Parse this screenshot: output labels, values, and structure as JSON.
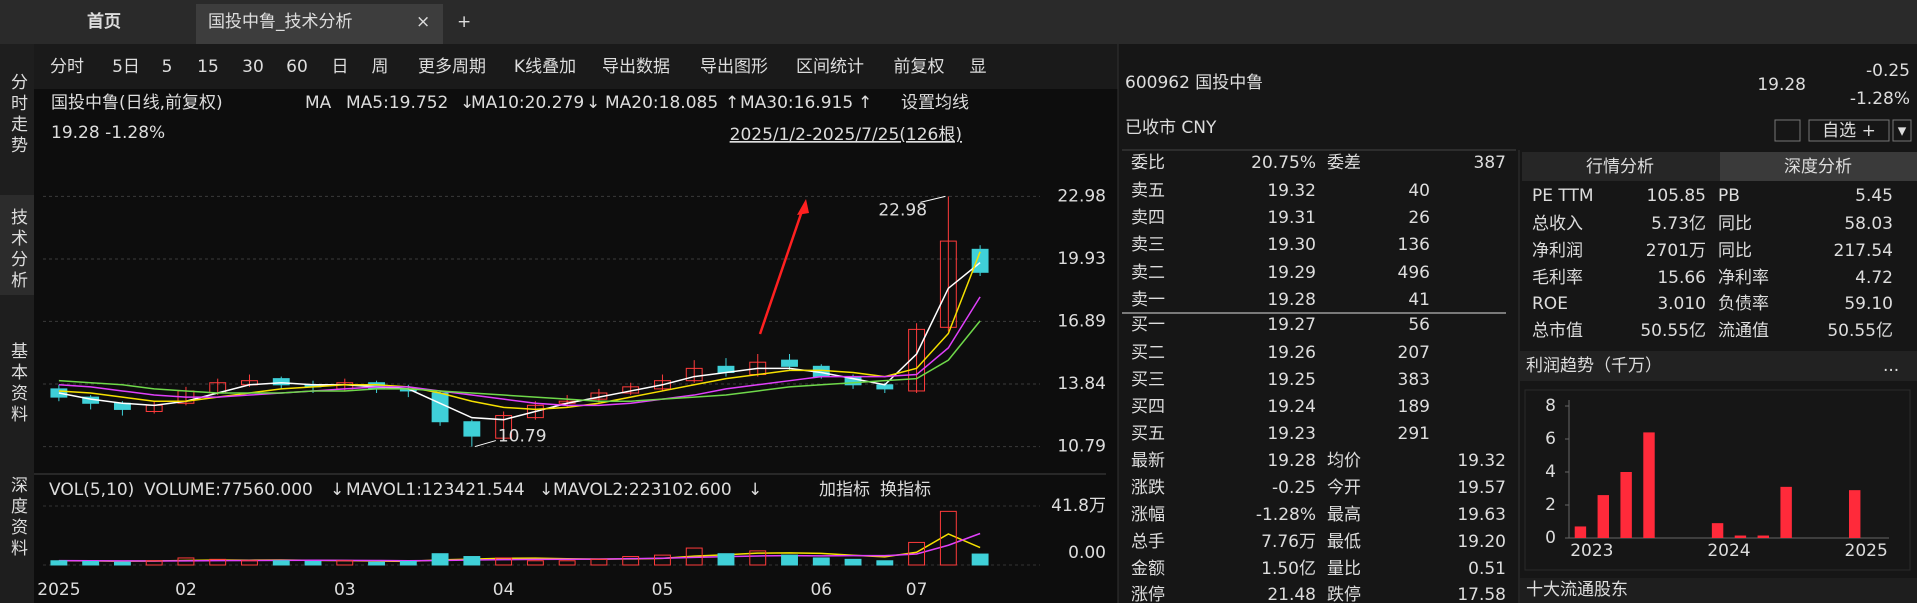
{
  "tabs": [
    "首页",
    "国投中鲁_技术分析"
  ],
  "side_nav": [
    {
      "text": "分时走势",
      "color": "#c8c8c8"
    },
    {
      "text": "技术分析",
      "color": "#ff7a2e"
    },
    {
      "text": "基本资料",
      "color": "#c8c8c8"
    },
    {
      "text": "深度资料",
      "color": "#c8c8c8"
    }
  ],
  "toolbar": [
    {
      "text": "分时",
      "color": "#dddddd"
    },
    {
      "text": "5日",
      "color": "#dddddd"
    },
    {
      "text": "5",
      "color": "#dddddd"
    },
    {
      "text": "15",
      "color": "#dddddd"
    },
    {
      "text": "30",
      "color": "#dddddd"
    },
    {
      "text": "60",
      "color": "#dddddd"
    },
    {
      "text": "日",
      "color": "#ff7a2e"
    },
    {
      "text": "周",
      "color": "#dddddd"
    },
    {
      "text": "更多周期",
      "color": "#dddddd"
    },
    {
      "text": "K线叠加",
      "color": "#dddddd"
    },
    {
      "text": "导出数据",
      "color": "#dddddd"
    },
    {
      "text": "导出图形",
      "color": "#dddddd"
    },
    {
      "text": "区间统计",
      "color": "#dddddd"
    },
    {
      "text": "前复权",
      "color": "#ff7a2e"
    },
    {
      "text": "显",
      "color": "#dddddd"
    }
  ],
  "chart_info": {
    "title": "国投中鲁(日线,前复权)",
    "ma": "MA",
    "last": "19.28 -1.28%",
    "range": "2025/1/2-2025/7/25(126根)",
    "set_ma": "设置均线"
  },
  "chart_data": [
    {
      "type": "candlestick",
      "categories": [
        "2025",
        null,
        null,
        null,
        "02",
        null,
        null,
        null,
        null,
        "03",
        null,
        null,
        null,
        null,
        "04",
        null,
        null,
        null,
        null,
        "05",
        null,
        null,
        null,
        null,
        "06",
        null,
        null,
        "07",
        null,
        null
      ],
      "open": [
        13.6,
        13.2,
        12.9,
        12.5,
        12.9,
        13.4,
        13.8,
        14.1,
        13.8,
        13.6,
        13.9,
        13.6,
        13.4,
        12.0,
        11.2,
        12.2,
        12.9,
        13.1,
        13.4,
        13.6,
        14.0,
        14.7,
        14.3,
        15.0,
        14.7,
        14.2,
        13.8,
        13.5,
        16.6,
        20.4
      ],
      "high": [
        13.8,
        13.3,
        13.0,
        13.0,
        13.7,
        14.1,
        14.3,
        14.2,
        14.0,
        14.1,
        14.0,
        13.8,
        13.5,
        12.1,
        12.5,
        13.0,
        13.3,
        13.6,
        13.9,
        14.3,
        15.0,
        15.1,
        15.3,
        15.3,
        14.8,
        14.3,
        13.9,
        16.8,
        22.98,
        20.6
      ],
      "low": [
        13.0,
        12.6,
        12.3,
        12.4,
        12.8,
        13.3,
        13.7,
        13.6,
        13.4,
        13.5,
        13.4,
        13.2,
        11.8,
        10.79,
        11.1,
        12.1,
        12.7,
        12.9,
        13.3,
        13.5,
        13.9,
        14.2,
        14.2,
        14.5,
        14.1,
        13.6,
        13.4,
        13.4,
        16.4,
        19.1
      ],
      "close": [
        13.2,
        12.9,
        12.6,
        12.8,
        13.5,
        13.9,
        14.0,
        13.8,
        13.7,
        13.9,
        13.6,
        13.5,
        12.0,
        11.3,
        12.3,
        12.8,
        13.0,
        13.4,
        13.7,
        14.0,
        14.6,
        14.4,
        14.9,
        14.7,
        14.2,
        13.8,
        13.6,
        16.5,
        20.8,
        19.28
      ],
      "up_color": "#ff3b3b",
      "down_color": "#3fd0d8",
      "series": [
        {
          "label": "MA5:19.752",
          "trend": "↓",
          "color": "#ffffff",
          "values": [
            13.4,
            13.1,
            12.9,
            12.8,
            13.0,
            13.4,
            13.8,
            13.9,
            13.8,
            13.8,
            13.7,
            13.6,
            12.9,
            12.2,
            12.1,
            12.5,
            12.9,
            13.2,
            13.5,
            13.8,
            14.2,
            14.4,
            14.6,
            14.6,
            14.4,
            14.1,
            13.8,
            15.3,
            18.5,
            19.752
          ]
        },
        {
          "label": "MA10:20.279",
          "trend": "↓",
          "color": "#f5e000",
          "values": [
            13.5,
            13.4,
            13.2,
            13.0,
            13.0,
            13.2,
            13.4,
            13.6,
            13.7,
            13.8,
            13.8,
            13.7,
            13.4,
            13.0,
            12.7,
            12.6,
            12.7,
            12.9,
            13.2,
            13.5,
            13.8,
            14.1,
            14.3,
            14.5,
            14.5,
            14.4,
            14.2,
            14.6,
            16.3,
            20.279
          ]
        },
        {
          "label": "MA20:18.085",
          "trend": "↑",
          "color": "#e040fb",
          "values": [
            13.8,
            13.7,
            13.5,
            13.3,
            13.2,
            13.2,
            13.3,
            13.4,
            13.5,
            13.6,
            13.7,
            13.7,
            13.5,
            13.3,
            13.1,
            12.9,
            12.8,
            12.8,
            12.9,
            13.1,
            13.3,
            13.6,
            13.8,
            14.0,
            14.2,
            14.2,
            14.2,
            14.3,
            15.6,
            18.085
          ]
        },
        {
          "label": "MA30:16.915",
          "trend": "↑",
          "color": "#6fd84a",
          "values": [
            14.0,
            13.9,
            13.8,
            13.6,
            13.5,
            13.4,
            13.4,
            13.4,
            13.5,
            13.5,
            13.6,
            13.6,
            13.5,
            13.4,
            13.3,
            13.2,
            13.1,
            13.0,
            13.0,
            13.1,
            13.2,
            13.3,
            13.5,
            13.7,
            13.8,
            13.9,
            14.0,
            14.1,
            15.0,
            16.915
          ]
        }
      ],
      "high_label": "22.98",
      "low_label": "10.79",
      "ylim": [
        9.6,
        24.8
      ],
      "yticks": [
        10.79,
        13.84,
        16.89,
        19.93,
        22.98
      ],
      "grid": true
    },
    {
      "type": "volume",
      "title": "VOL(5,10)",
      "label": "VOLUME:77560.000",
      "trend": "↓",
      "buttons": [
        "加指标",
        "换指标"
      ],
      "values": [
        3,
        2.5,
        2,
        3,
        5,
        4,
        3,
        3,
        2.5,
        3,
        2,
        2.5,
        8,
        6,
        5,
        3,
        3,
        4,
        6,
        7,
        12,
        8,
        10,
        7,
        5,
        4,
        3,
        16,
        38,
        7.756
      ],
      "series": [
        {
          "label": "MAVOL1:123421.544",
          "trend": "↓",
          "color": "#f5e000",
          "values": [
            3.0,
            2.9,
            2.7,
            2.8,
            3.2,
            3.5,
            3.4,
            3.5,
            3.3,
            3.1,
            2.8,
            2.6,
            3.6,
            4.2,
            4.8,
            4.9,
            4.4,
            4.2,
            4.3,
            4.7,
            6.3,
            7.3,
            8.4,
            8.6,
            8.2,
            6.9,
            5.8,
            9.0,
            22.0,
            12.34
          ]
        },
        {
          "label": "MAVOL2:223102.600",
          "trend": "↓",
          "color": "#e040fb",
          "values": [
            3.1,
            3.0,
            2.9,
            2.8,
            2.9,
            3.1,
            3.2,
            3.3,
            3.4,
            3.3,
            3.2,
            3.0,
            3.2,
            3.5,
            3.8,
            4.0,
            4.1,
            4.2,
            4.5,
            4.8,
            5.4,
            5.9,
            6.4,
            6.6,
            6.5,
            6.6,
            6.6,
            7.8,
            14.0,
            22.31
          ]
        }
      ],
      "ylim": [
        0,
        41.8
      ],
      "yticks": [
        {
          "value": 41.8,
          "label": "41.8万"
        },
        {
          "value": 0,
          "label": "0.00"
        }
      ]
    },
    {
      "type": "bar",
      "title": "利润趋势（千万）",
      "more": "...",
      "color": "#ff2a3a",
      "categories": [
        null,
        "2023",
        null,
        null,
        null,
        null,
        null,
        "2024",
        null,
        null,
        null,
        null,
        null,
        "2025"
      ],
      "values": [
        0.7,
        2.6,
        4.0,
        6.4,
        null,
        null,
        0.9,
        0.15,
        0.15,
        3.1,
        null,
        null,
        2.9,
        null
      ],
      "ylim": [
        0,
        8
      ],
      "yticks": [
        0,
        2,
        4,
        6,
        8
      ]
    }
  ],
  "quote": {
    "code_name": "600962 国投中鲁",
    "status": "已收市 CNY",
    "price": "19.28",
    "change": "-0.25",
    "change_pct": "-1.28%",
    "watch": "自选 +",
    "menu": "▾"
  },
  "order_book": {
    "top": {
      "cells": [
        "委比",
        "20.75%",
        "委差",
        "387"
      ],
      "colors": [
        "#dddddd",
        "#ff3b3b",
        "#dddddd",
        "#ff3b3b"
      ]
    },
    "levels": [
      {
        "cells": [
          "卖五",
          "19.32",
          "40"
        ],
        "colors": [
          "#dddddd",
          "#1fd16c",
          "#dddddd"
        ]
      },
      {
        "cells": [
          "卖四",
          "19.31",
          "26"
        ],
        "colors": [
          "#dddddd",
          "#1fd16c",
          "#dddddd"
        ]
      },
      {
        "cells": [
          "卖三",
          "19.30",
          "136"
        ],
        "colors": [
          "#dddddd",
          "#1fd16c",
          "#dddddd"
        ]
      },
      {
        "cells": [
          "卖二",
          "19.29",
          "496"
        ],
        "colors": [
          "#dddddd",
          "#1fd16c",
          "#dddddd"
        ]
      },
      {
        "cells": [
          "卖一",
          "19.28",
          "41"
        ],
        "colors": [
          "#dddddd",
          "#1fd16c",
          "#dddddd"
        ]
      },
      {
        "cells": [
          "买一",
          "19.27",
          "56"
        ],
        "colors": [
          "#dddddd",
          "#1fd16c",
          "#dddddd"
        ]
      },
      {
        "cells": [
          "买二",
          "19.26",
          "207"
        ],
        "colors": [
          "#dddddd",
          "#1fd16c",
          "#dddddd"
        ]
      },
      {
        "cells": [
          "买三",
          "19.25",
          "383"
        ],
        "colors": [
          "#dddddd",
          "#1fd16c",
          "#dddddd"
        ]
      },
      {
        "cells": [
          "买四",
          "19.24",
          "189"
        ],
        "colors": [
          "#dddddd",
          "#1fd16c",
          "#dddddd"
        ]
      },
      {
        "cells": [
          "买五",
          "19.23",
          "291"
        ],
        "colors": [
          "#dddddd",
          "#1fd16c",
          "#dddddd"
        ]
      }
    ],
    "stats": [
      {
        "cells": [
          "最新",
          "19.28",
          "均价",
          "19.32"
        ],
        "colors": [
          "#dddddd",
          "#1fd16c",
          "#dddddd",
          "#1fd16c"
        ]
      },
      {
        "cells": [
          "涨跌",
          "-0.25",
          "今开",
          "19.57"
        ],
        "colors": [
          "#dddddd",
          "#1fd16c",
          "#dddddd",
          "#ff3b3b"
        ]
      },
      {
        "cells": [
          "涨幅",
          "-1.28%",
          "最高",
          "19.63"
        ],
        "colors": [
          "#dddddd",
          "#1fd16c",
          "#dddddd",
          "#ff3b3b"
        ]
      },
      {
        "cells": [
          "总手",
          "7.76万",
          "最低",
          "19.20"
        ],
        "colors": [
          "#dddddd",
          "#dddddd",
          "#dddddd",
          "#1fd16c"
        ]
      },
      {
        "cells": [
          "金额",
          "1.50亿",
          "量比",
          "0.51"
        ],
        "colors": [
          "#dddddd",
          "#3fd0d8",
          "#dddddd",
          "#dddddd"
        ]
      },
      {
        "cells": [
          "涨停",
          "21.48",
          "跌停",
          "17.58"
        ],
        "colors": [
          "#dddddd",
          "#ff3b3b",
          "#dddddd",
          "#1fd16c"
        ]
      }
    ]
  },
  "analysis": {
    "tabs": [
      "行情分析",
      "深度分析"
    ],
    "rows": [
      [
        "PE TTM",
        "105.85",
        "PB",
        "5.45"
      ],
      [
        "总收入",
        "5.73亿",
        "同比",
        "58.03"
      ],
      [
        "净利润",
        "2701万",
        "同比",
        "217.54"
      ],
      [
        "毛利率",
        "15.66",
        "净利率",
        "4.72"
      ],
      [
        "ROE",
        "3.010",
        "负债率",
        "59.10"
      ],
      [
        "总市值",
        "50.55亿",
        "流通值",
        "50.55亿"
      ]
    ],
    "holders": "十大流通股东"
  }
}
